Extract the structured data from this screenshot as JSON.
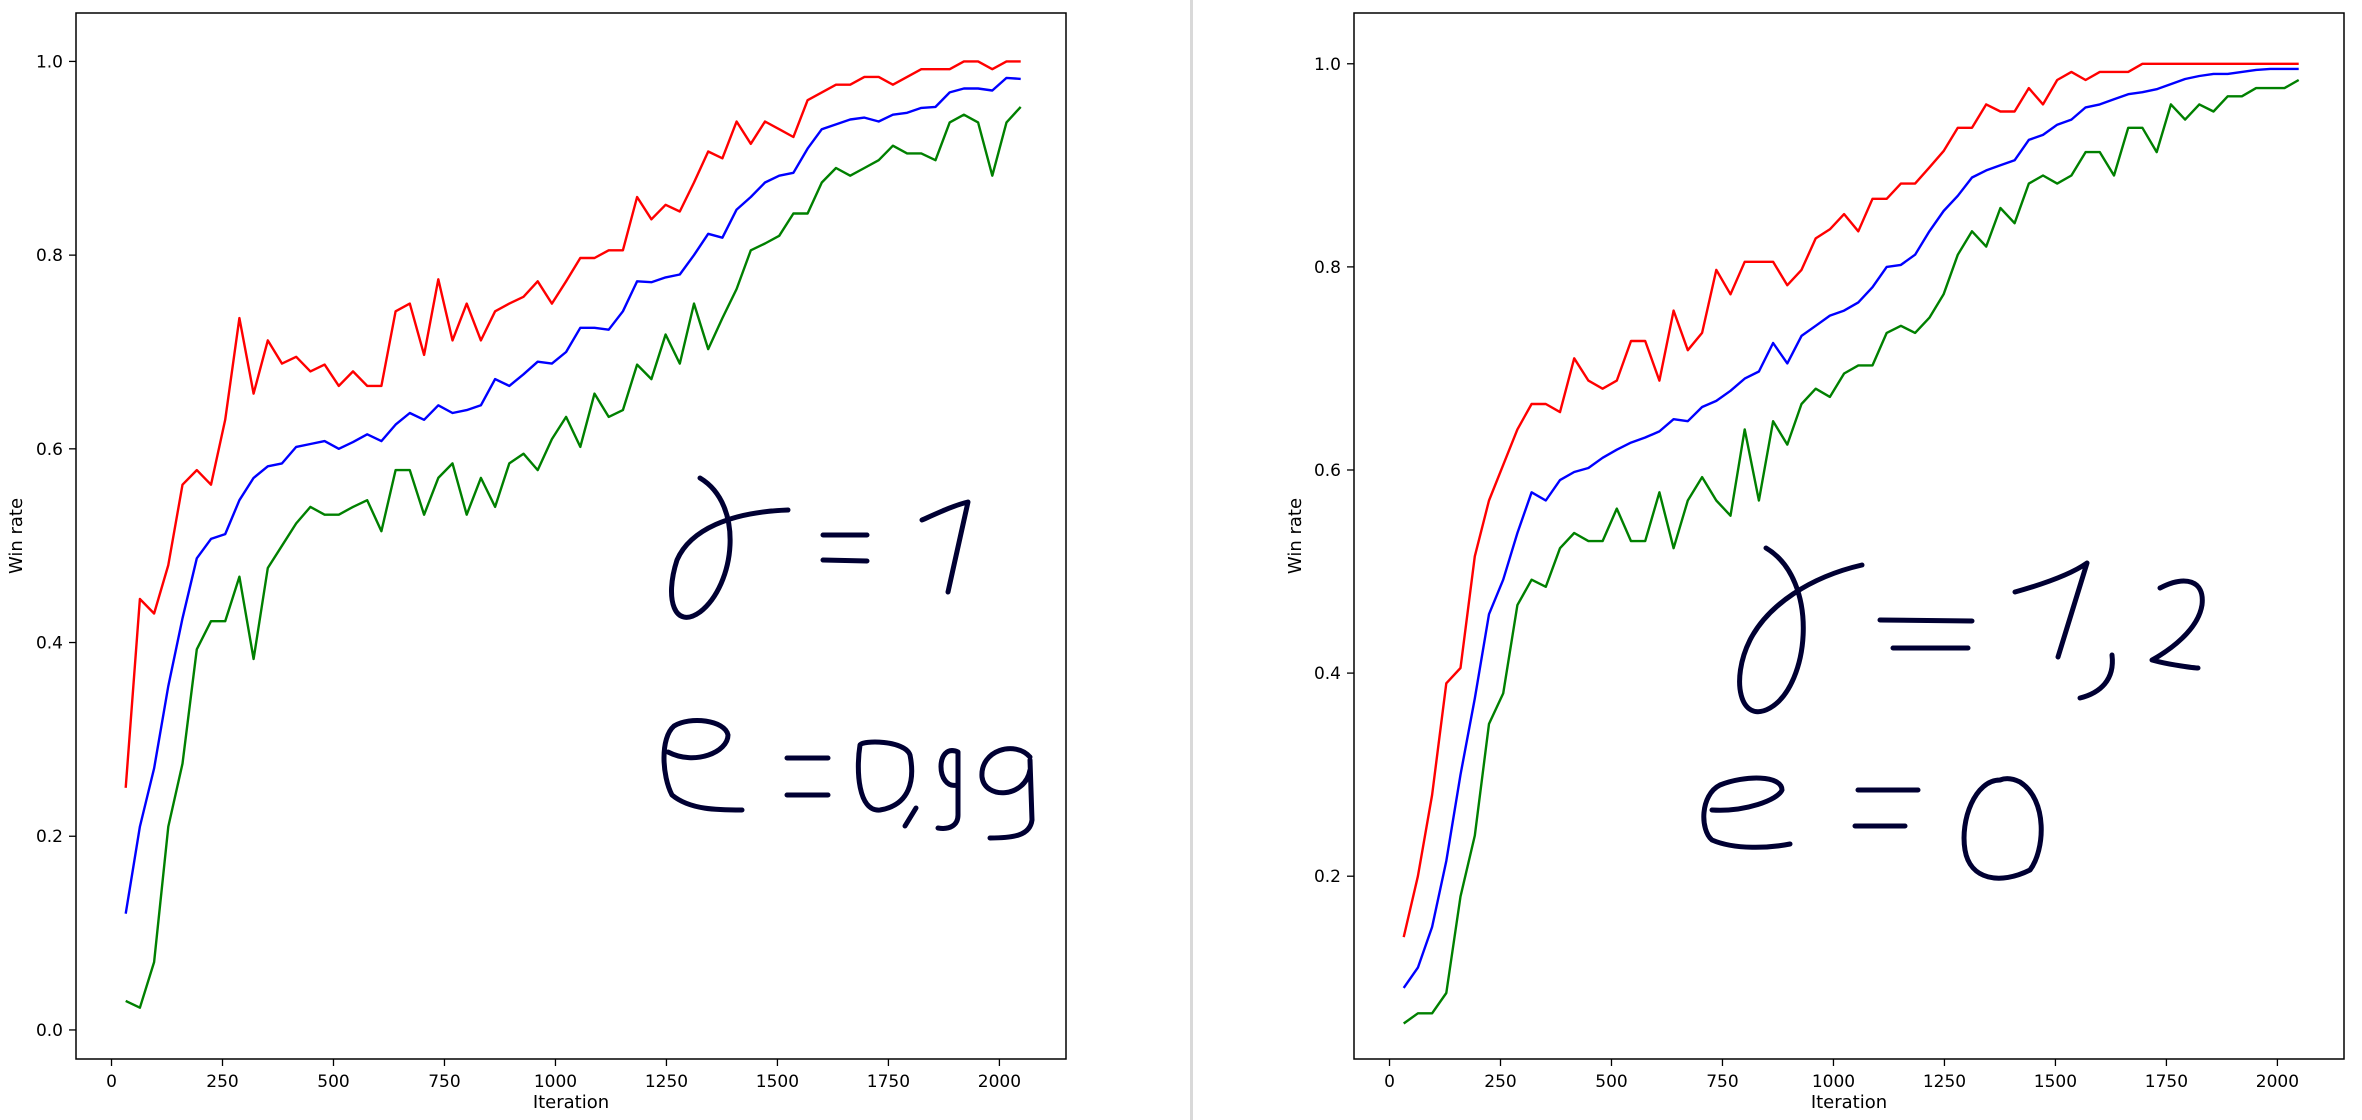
{
  "chart_data": [
    {
      "type": "line",
      "xlabel": "Iteration",
      "ylabel": "Win rate",
      "xlim": [
        -80,
        2150
      ],
      "ylim": [
        -0.03,
        1.05
      ],
      "xticks": [
        0,
        250,
        500,
        750,
        1000,
        1250,
        1500,
        1750,
        2000
      ],
      "yticks": [
        0.0,
        0.2,
        0.4,
        0.6,
        0.8,
        1.0
      ],
      "ytick_format": "1",
      "grid": false,
      "series": [
        {
          "color": "#ff0000",
          "x": [
            32,
            64,
            96,
            128,
            160,
            192,
            224,
            256,
            288,
            320,
            352,
            384,
            416,
            448,
            480,
            512,
            544,
            576,
            608,
            640,
            672,
            704,
            736,
            768,
            800,
            832,
            864,
            896,
            928,
            960,
            992,
            1024,
            1056,
            1088,
            1120,
            1152,
            1184,
            1216,
            1248,
            1280,
            1312,
            1344,
            1376,
            1408,
            1440,
            1472,
            1504,
            1536,
            1568,
            1600,
            1632,
            1664,
            1696,
            1728,
            1760,
            1792,
            1824,
            1856,
            1888,
            1920,
            1952,
            1984,
            2016,
            2048
          ],
          "y": [
            0.25,
            0.445,
            0.43,
            0.48,
            0.563,
            0.578,
            0.563,
            0.63,
            0.735,
            0.657,
            0.712,
            0.688,
            0.695,
            0.68,
            0.687,
            0.665,
            0.68,
            0.665,
            0.665,
            0.742,
            0.75,
            0.697,
            0.775,
            0.712,
            0.75,
            0.712,
            0.742,
            0.75,
            0.757,
            0.773,
            0.75,
            0.773,
            0.797,
            0.797,
            0.805,
            0.805,
            0.86,
            0.837,
            0.852,
            0.845,
            0.875,
            0.907,
            0.9,
            0.938,
            0.915,
            0.938,
            0.93,
            0.922,
            0.96,
            0.968,
            0.976,
            0.976,
            0.984,
            0.984,
            0.976,
            0.984,
            0.992,
            0.992,
            0.992,
            1.0,
            1.0,
            0.992,
            1.0,
            1.0
          ]
        },
        {
          "color": "#0000ff",
          "x": [
            32,
            64,
            96,
            128,
            160,
            192,
            224,
            256,
            288,
            320,
            352,
            384,
            416,
            448,
            480,
            512,
            544,
            576,
            608,
            640,
            672,
            704,
            736,
            768,
            800,
            832,
            864,
            896,
            928,
            960,
            992,
            1024,
            1056,
            1088,
            1120,
            1152,
            1184,
            1216,
            1248,
            1280,
            1312,
            1344,
            1376,
            1408,
            1440,
            1472,
            1504,
            1536,
            1568,
            1600,
            1632,
            1664,
            1696,
            1728,
            1760,
            1792,
            1824,
            1856,
            1888,
            1920,
            1952,
            1984,
            2016,
            2048
          ],
          "y": [
            0.12,
            0.21,
            0.27,
            0.355,
            0.425,
            0.487,
            0.507,
            0.512,
            0.547,
            0.57,
            0.582,
            0.585,
            0.602,
            0.605,
            0.608,
            0.6,
            0.607,
            0.615,
            0.608,
            0.625,
            0.637,
            0.63,
            0.645,
            0.637,
            0.64,
            0.645,
            0.672,
            0.665,
            0.677,
            0.69,
            0.688,
            0.7,
            0.725,
            0.725,
            0.723,
            0.742,
            0.773,
            0.772,
            0.777,
            0.78,
            0.8,
            0.822,
            0.818,
            0.847,
            0.86,
            0.875,
            0.882,
            0.885,
            0.91,
            0.93,
            0.935,
            0.94,
            0.942,
            0.938,
            0.945,
            0.947,
            0.952,
            0.953,
            0.968,
            0.972,
            0.972,
            0.97,
            0.983,
            0.982
          ]
        },
        {
          "color": "#008000",
          "x": [
            32,
            64,
            96,
            128,
            160,
            192,
            224,
            256,
            288,
            320,
            352,
            384,
            416,
            448,
            480,
            512,
            544,
            576,
            608,
            640,
            672,
            704,
            736,
            768,
            800,
            832,
            864,
            896,
            928,
            960,
            992,
            1024,
            1056,
            1088,
            1120,
            1152,
            1184,
            1216,
            1248,
            1280,
            1312,
            1344,
            1376,
            1408,
            1440,
            1472,
            1504,
            1536,
            1568,
            1600,
            1632,
            1664,
            1696,
            1728,
            1760,
            1792,
            1824,
            1856,
            1888,
            1920,
            1952,
            1984,
            2016,
            2048
          ],
          "y": [
            0.03,
            0.023,
            0.07,
            0.21,
            0.275,
            0.393,
            0.422,
            0.422,
            0.468,
            0.383,
            0.477,
            0.5,
            0.523,
            0.54,
            0.532,
            0.532,
            0.54,
            0.547,
            0.515,
            0.578,
            0.578,
            0.532,
            0.57,
            0.585,
            0.532,
            0.57,
            0.54,
            0.585,
            0.595,
            0.578,
            0.61,
            0.633,
            0.602,
            0.657,
            0.633,
            0.64,
            0.687,
            0.672,
            0.718,
            0.688,
            0.75,
            0.703,
            0.735,
            0.765,
            0.805,
            0.812,
            0.82,
            0.843,
            0.843,
            0.875,
            0.89,
            0.882,
            0.89,
            0.898,
            0.913,
            0.905,
            0.905,
            0.898,
            0.937,
            0.945,
            0.937,
            0.882,
            0.937,
            0.953
          ]
        }
      ]
    },
    {
      "type": "line",
      "xlabel": "Iteration",
      "ylabel": "Win rate",
      "xlim": [
        -80,
        2150
      ],
      "ylim": [
        0.02,
        1.05
      ],
      "xticks": [
        0,
        250,
        500,
        750,
        1000,
        1250,
        1500,
        1750,
        2000
      ],
      "yticks": [
        0.2,
        0.4,
        0.6,
        0.8,
        1.0
      ],
      "ytick_format": "1",
      "grid": false,
      "series": [
        {
          "color": "#ff0000",
          "x": [
            32,
            64,
            96,
            128,
            160,
            192,
            224,
            256,
            288,
            320,
            352,
            384,
            416,
            448,
            480,
            512,
            544,
            576,
            608,
            640,
            672,
            704,
            736,
            768,
            800,
            832,
            864,
            896,
            928,
            960,
            992,
            1024,
            1056,
            1088,
            1120,
            1152,
            1184,
            1216,
            1248,
            1280,
            1312,
            1344,
            1376,
            1408,
            1440,
            1472,
            1504,
            1536,
            1568,
            1600,
            1632,
            1664,
            1696,
            1728,
            1760,
            1792,
            1824,
            1856,
            1888,
            1920,
            1952,
            1984,
            2016,
            2048
          ],
          "y": [
            0.14,
            0.2,
            0.28,
            0.39,
            0.405,
            0.515,
            0.57,
            0.605,
            0.64,
            0.665,
            0.665,
            0.657,
            0.71,
            0.688,
            0.68,
            0.688,
            0.727,
            0.727,
            0.688,
            0.757,
            0.718,
            0.735,
            0.797,
            0.773,
            0.805,
            0.805,
            0.805,
            0.782,
            0.797,
            0.828,
            0.837,
            0.852,
            0.835,
            0.867,
            0.867,
            0.882,
            0.882,
            0.898,
            0.914,
            0.937,
            0.937,
            0.96,
            0.953,
            0.953,
            0.976,
            0.96,
            0.984,
            0.992,
            0.984,
            0.992,
            0.992,
            0.992,
            1.0,
            1.0,
            1.0,
            1.0,
            1.0,
            1.0,
            1.0,
            1.0,
            1.0,
            1.0,
            1.0,
            1.0
          ]
        },
        {
          "color": "#0000ff",
          "x": [
            32,
            64,
            96,
            128,
            160,
            192,
            224,
            256,
            288,
            320,
            352,
            384,
            416,
            448,
            480,
            512,
            544,
            576,
            608,
            640,
            672,
            704,
            736,
            768,
            800,
            832,
            864,
            896,
            928,
            960,
            992,
            1024,
            1056,
            1088,
            1120,
            1152,
            1184,
            1216,
            1248,
            1280,
            1312,
            1344,
            1376,
            1408,
            1440,
            1472,
            1504,
            1536,
            1568,
            1600,
            1632,
            1664,
            1696,
            1728,
            1760,
            1792,
            1824,
            1856,
            1888,
            1920,
            1952,
            1984,
            2016,
            2048
          ],
          "y": [
            0.09,
            0.11,
            0.15,
            0.215,
            0.3,
            0.375,
            0.458,
            0.492,
            0.538,
            0.578,
            0.57,
            0.59,
            0.598,
            0.602,
            0.612,
            0.62,
            0.627,
            0.632,
            0.638,
            0.65,
            0.648,
            0.662,
            0.668,
            0.678,
            0.69,
            0.697,
            0.725,
            0.705,
            0.732,
            0.742,
            0.752,
            0.757,
            0.765,
            0.78,
            0.8,
            0.802,
            0.812,
            0.835,
            0.855,
            0.87,
            0.888,
            0.895,
            0.9,
            0.905,
            0.925,
            0.93,
            0.94,
            0.945,
            0.957,
            0.96,
            0.965,
            0.97,
            0.972,
            0.975,
            0.98,
            0.985,
            0.988,
            0.99,
            0.99,
            0.992,
            0.994,
            0.995,
            0.995,
            0.995
          ]
        },
        {
          "color": "#008000",
          "x": [
            32,
            64,
            96,
            128,
            160,
            192,
            224,
            256,
            288,
            320,
            352,
            384,
            416,
            448,
            480,
            512,
            544,
            576,
            608,
            640,
            672,
            704,
            736,
            768,
            800,
            832,
            864,
            896,
            928,
            960,
            992,
            1024,
            1056,
            1088,
            1120,
            1152,
            1184,
            1216,
            1248,
            1280,
            1312,
            1344,
            1376,
            1408,
            1440,
            1472,
            1504,
            1536,
            1568,
            1600,
            1632,
            1664,
            1696,
            1728,
            1760,
            1792,
            1824,
            1856,
            1888,
            1920,
            1952,
            1984,
            2016,
            2048
          ],
          "y": [
            0.055,
            0.065,
            0.065,
            0.085,
            0.18,
            0.24,
            0.35,
            0.38,
            0.467,
            0.492,
            0.485,
            0.523,
            0.538,
            0.53,
            0.53,
            0.562,
            0.53,
            0.53,
            0.578,
            0.523,
            0.57,
            0.593,
            0.57,
            0.555,
            0.64,
            0.57,
            0.648,
            0.625,
            0.665,
            0.68,
            0.672,
            0.695,
            0.703,
            0.703,
            0.735,
            0.742,
            0.735,
            0.75,
            0.773,
            0.812,
            0.835,
            0.82,
            0.858,
            0.843,
            0.882,
            0.89,
            0.882,
            0.89,
            0.913,
            0.913,
            0.89,
            0.937,
            0.937,
            0.913,
            0.96,
            0.945,
            0.96,
            0.953,
            0.968,
            0.968,
            0.976,
            0.976,
            0.976,
            0.984
          ]
        }
      ]
    }
  ],
  "annotations": [
    {
      "panel": 0,
      "lines": [
        "γ = 1",
        "ε = 0,99"
      ],
      "color": "#000033"
    },
    {
      "panel": 1,
      "lines": [
        "γ = 1,2",
        "ε = 0"
      ],
      "color": "#000033"
    }
  ]
}
